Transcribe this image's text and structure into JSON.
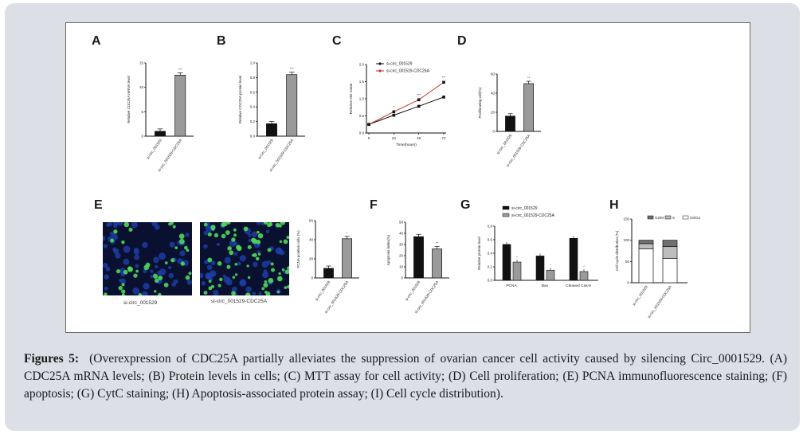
{
  "figure": {
    "panels": {
      "A": {
        "letter": "A",
        "ylabel": "Relative CDC25A mRNA level",
        "yticks": [
          "0",
          "5",
          "10",
          "15"
        ],
        "categories": [
          "si-circ_001529",
          "si-circ_001529-CDC25A"
        ],
        "values": [
          1,
          12.5
        ],
        "ymax": 15,
        "sig": [
          "",
          "***"
        ]
      },
      "B": {
        "letter": "B",
        "ylabel": "Relative CDC25A protein level",
        "yticks": [
          "0.0",
          "0.2",
          "0.4",
          "0.6",
          "0.8",
          "1.0"
        ],
        "categories": [
          "si-circ_001529",
          "si-circ_001529-CDC25A"
        ],
        "values": [
          0.17,
          0.84
        ],
        "ymax": 1.0,
        "sig": [
          "",
          "***"
        ]
      },
      "C": {
        "letter": "C",
        "ylabel": "Relative OD value",
        "xlabel": "Time(hours)",
        "yticks": [
          "0.0",
          "0.5",
          "1.0",
          "1.5",
          "2.0"
        ],
        "xticks": [
          "0",
          "24",
          "48",
          "72"
        ],
        "legend": [
          "si-circ_001529",
          "si-circ_001529-CDC25A"
        ]
      },
      "D": {
        "letter": "D",
        "ylabel": "Proliferating cell(%)",
        "yticks": [
          "0",
          "20",
          "40",
          "60"
        ],
        "categories": [
          "si-circ_001529",
          "si-circ_001529-CDC25A"
        ],
        "values": [
          16,
          50
        ],
        "ymax": 60,
        "sig": [
          "",
          "**"
        ]
      },
      "E": {
        "letter": "E",
        "image_labels": [
          "si-circ_001529",
          "si-circ_001529-CDC25A"
        ],
        "ylabel": "PCNA positive cells (%)",
        "yticks": [
          "0",
          "20",
          "40",
          "60"
        ],
        "categories": [
          "si-circ_001529",
          "si-circ_001529-CDC25A"
        ],
        "values": [
          10,
          41
        ],
        "ymax": 60,
        "sig": [
          "",
          "*"
        ]
      },
      "F": {
        "letter": "F",
        "ylabel": "Apoptosis index(%)",
        "yticks": [
          "0",
          "10",
          "20",
          "30",
          "40",
          "50"
        ],
        "categories": [
          "si-circ_001529",
          "si-circ_001529-CDC25A"
        ],
        "values": [
          37,
          26
        ],
        "ymax": 50,
        "sig": [
          "",
          "**"
        ]
      },
      "G": {
        "letter": "G",
        "ylabel": "Relative protein level",
        "yticks": [
          "0.0",
          "0.2",
          "0.4",
          "0.6",
          "0.8"
        ],
        "groups": [
          "PCNA",
          "Bax",
          "Cleaved Cas-9"
        ],
        "legend": [
          "si-circ_001529",
          "si-circ_001529-CDC25A"
        ],
        "series1": [
          0.53,
          0.36,
          0.62
        ],
        "series2": [
          0.27,
          0.15,
          0.13
        ],
        "ymax": 0.8
      },
      "H": {
        "letter": "H",
        "ylabel": "Cell cycle distribution (%)",
        "yticks": [
          "0",
          "50",
          "100",
          "150"
        ],
        "legend": [
          "G2/M",
          "S",
          "G0/G1"
        ],
        "categories": [
          "si-circ_001529",
          "si-circ_001529-CDC25A"
        ]
      }
    }
  },
  "chart_data": [
    {
      "panel": "A",
      "type": "bar",
      "categories": [
        "si-circ_001529",
        "si-circ_001529-CDC25A"
      ],
      "values": [
        1,
        12.5
      ],
      "ylabel": "Relative CDC25A mRNA level",
      "ylim": [
        0,
        15
      ]
    },
    {
      "panel": "B",
      "type": "bar",
      "categories": [
        "si-circ_001529",
        "si-circ_001529-CDC25A"
      ],
      "values": [
        0.17,
        0.84
      ],
      "ylabel": "Relative CDC25A protein level",
      "ylim": [
        0,
        1.0
      ]
    },
    {
      "panel": "C",
      "type": "line",
      "x": [
        0,
        24,
        48,
        72
      ],
      "series": [
        {
          "name": "si-circ_001529",
          "values": [
            0.25,
            0.52,
            0.78,
            1.05
          ]
        },
        {
          "name": "si-circ_001529-CDC25A",
          "values": [
            0.25,
            0.62,
            0.97,
            1.48
          ]
        }
      ],
      "xlabel": "Time(hours)",
      "ylabel": "Relative OD value",
      "ylim": [
        0,
        2.0
      ]
    },
    {
      "panel": "D",
      "type": "bar",
      "categories": [
        "si-circ_001529",
        "si-circ_001529-CDC25A"
      ],
      "values": [
        16,
        50
      ],
      "ylabel": "Proliferating cell(%)",
      "ylim": [
        0,
        60
      ]
    },
    {
      "panel": "E",
      "type": "bar",
      "categories": [
        "si-circ_001529",
        "si-circ_001529-CDC25A"
      ],
      "values": [
        10,
        41
      ],
      "ylabel": "PCNA positive cells (%)",
      "ylim": [
        0,
        60
      ]
    },
    {
      "panel": "F",
      "type": "bar",
      "categories": [
        "si-circ_001529",
        "si-circ_001529-CDC25A"
      ],
      "values": [
        37,
        26
      ],
      "ylabel": "Apoptosis index(%)",
      "ylim": [
        0,
        50
      ]
    },
    {
      "panel": "G",
      "type": "bar",
      "categories": [
        "PCNA",
        "Bax",
        "Cleaved Cas-9"
      ],
      "series": [
        {
          "name": "si-circ_001529",
          "values": [
            0.53,
            0.36,
            0.62
          ]
        },
        {
          "name": "si-circ_001529-CDC25A",
          "values": [
            0.27,
            0.15,
            0.13
          ]
        }
      ],
      "ylabel": "Relative protein level",
      "ylim": [
        0,
        0.8
      ]
    },
    {
      "panel": "H",
      "type": "bar",
      "categories": [
        "si-circ_001529",
        "si-circ_001529-CDC25A"
      ],
      "series": [
        {
          "name": "G0/G1",
          "values": [
            80,
            57
          ]
        },
        {
          "name": "S",
          "values": [
            12,
            28
          ]
        },
        {
          "name": "G2/M",
          "values": [
            8,
            15
          ]
        }
      ],
      "ylabel": "Cell cycle distribution (%)",
      "ylim": [
        0,
        150
      ]
    }
  ],
  "caption": {
    "label": "Figures 5",
    "text": "(Overexpression of CDC25A partially alleviates the suppression of ovarian cancer cell activity caused by silencing Circ_0001529. (A) CDC25A mRNA levels; (B) Protein levels  in cells; (C) MTT assay for cell activity; (D) Cell proliferation; (E) PCNA immunofluorescence staining; (F) apoptosis; (G) CytC staining; (H) Apoptosis-associated protein assay; (I) Cell cycle distribution)."
  }
}
